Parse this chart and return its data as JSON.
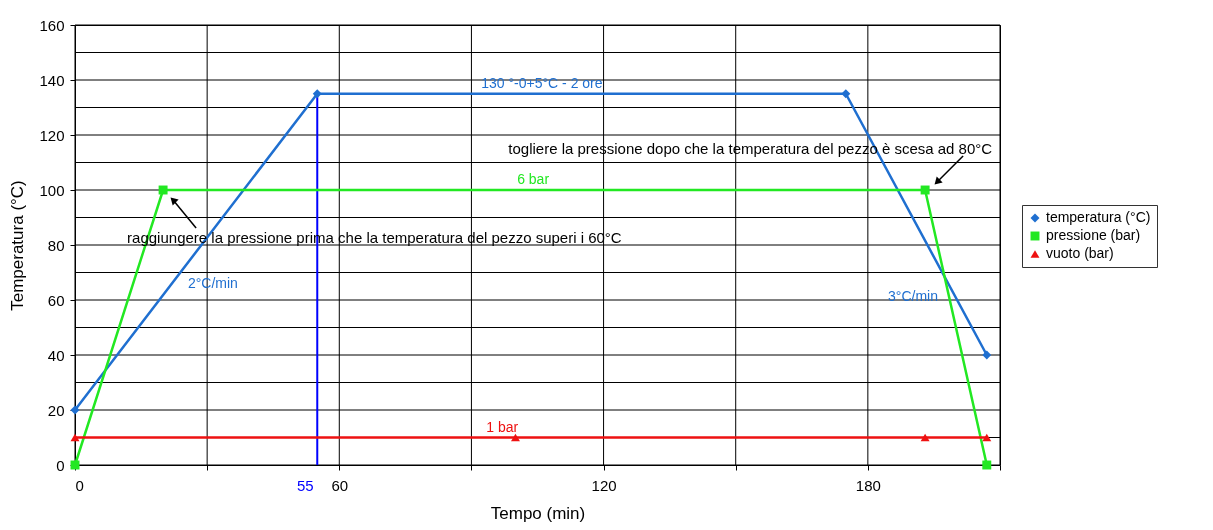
{
  "chart_data": {
    "type": "line",
    "xlabel": "Tempo (min)",
    "ylabel": "Temperatura (°C)",
    "xlim": [
      0,
      210
    ],
    "xticks": [
      0,
      {
        "value": 30,
        "label": null
      },
      60,
      {
        "value": 90,
        "label": null
      },
      120,
      {
        "value": 150,
        "label": null
      },
      180,
      {
        "value": 210,
        "label": null
      }
    ],
    "ylim": [
      0,
      160
    ],
    "yticks": [
      0,
      {
        "value": 10,
        "label": null
      },
      20,
      {
        "value": 30,
        "label": null
      },
      40,
      {
        "value": 50,
        "label": null
      },
      60,
      {
        "value": 70,
        "label": null
      },
      80,
      {
        "value": 90,
        "label": null
      },
      100,
      {
        "value": 110,
        "label": null
      },
      120,
      {
        "value": 130,
        "label": null
      },
      140,
      {
        "value": 150,
        "label": null
      },
      160
    ],
    "grid": true,
    "legend": "right",
    "series": [
      {
        "name": "temperatura (°C)",
        "color": "#1f6fd0",
        "marker": "diamond",
        "x": [
          0,
          55,
          175,
          207
        ],
        "values": [
          20,
          135,
          135,
          40
        ]
      },
      {
        "name": "pressione (bar)",
        "color": "#22e822",
        "marker": "square",
        "x": [
          0,
          20,
          193,
          207
        ],
        "values": [
          0,
          100,
          100,
          0
        ]
      },
      {
        "name": "vuoto (bar)",
        "color": "#ee1111",
        "marker": "triangle",
        "x": [
          0,
          100,
          193,
          207
        ],
        "values": [
          10,
          10,
          10,
          10
        ]
      }
    ],
    "ref_lines": [
      {
        "axis": "x",
        "value": 55,
        "label": "55",
        "color": "#0000ff"
      }
    ],
    "annotations": [
      {
        "text": "130 °-0+5°C - 2 ore",
        "x": 106,
        "y": 135
      },
      {
        "text": "6 bar",
        "x": 104,
        "y": 100
      },
      {
        "text": "1 bar",
        "x": 97,
        "y": 10
      },
      {
        "text": "2°C/min",
        "x": 22,
        "y": 66
      },
      {
        "text": "3°C/min",
        "x": 200,
        "y": 61
      },
      {
        "text": "togliere la pressione dopo che la temperatura del pezzo è scesa ad 80°C",
        "x": 193,
        "y": 100
      },
      {
        "text": "raggiungere la pressione prima che la temperatura del pezzo superi i 60°C",
        "x": 20,
        "y": 100
      }
    ]
  }
}
